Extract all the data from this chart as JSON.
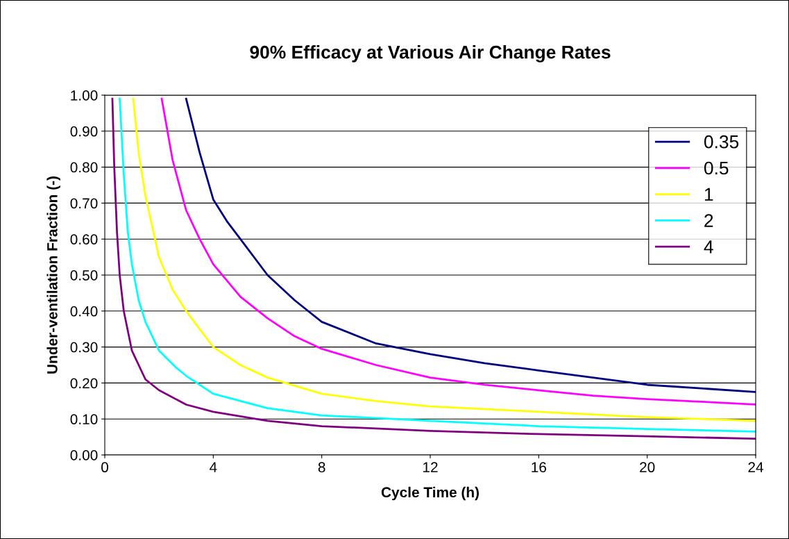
{
  "chart_data": {
    "type": "line",
    "title": "90% Efficacy at Various Air Change Rates",
    "xlabel": "Cycle Time (h)",
    "ylabel": "Under-ventilation Fraction (-)",
    "xlim": [
      0,
      24
    ],
    "xticks": [
      0,
      4,
      8,
      12,
      16,
      20,
      24
    ],
    "ylim": [
      0,
      1
    ],
    "yticks": [
      {
        "value": 0,
        "label": "0.00"
      },
      {
        "value": 0.1,
        "label": "0.10"
      },
      {
        "value": 0.2,
        "label": "0.20"
      },
      {
        "value": 0.3,
        "label": "0.30"
      },
      {
        "value": 0.4,
        "label": "0.40"
      },
      {
        "value": 0.5,
        "label": "0.50"
      },
      {
        "value": 0.6,
        "label": "0.60"
      },
      {
        "value": 0.7,
        "label": "0.70"
      },
      {
        "value": 0.8,
        "label": "0.80"
      },
      {
        "value": 0.9,
        "label": "0.90"
      },
      {
        "value": 1,
        "label": "1.00"
      }
    ],
    "grid": "y",
    "legend": "right",
    "marker": "none",
    "line_style": "solid",
    "series": [
      {
        "name": "0.35",
        "color": "#000080",
        "x": [
          3.0,
          3.5,
          4,
          4.5,
          5,
          6,
          7,
          8,
          10,
          12,
          14,
          16,
          18,
          20,
          22,
          24
        ],
        "values": [
          0.99,
          0.84,
          0.71,
          0.65,
          0.6,
          0.5,
          0.43,
          0.37,
          0.31,
          0.28,
          0.255,
          0.235,
          0.215,
          0.195,
          0.185,
          0.175
        ]
      },
      {
        "name": "0.5",
        "color": "#ff00ff",
        "x": [
          2.1,
          2.5,
          3,
          3.5,
          4,
          5,
          6,
          7,
          8,
          10,
          12,
          14,
          16,
          18,
          20,
          22,
          24
        ],
        "values": [
          0.99,
          0.82,
          0.68,
          0.6,
          0.53,
          0.44,
          0.38,
          0.33,
          0.295,
          0.25,
          0.215,
          0.195,
          0.18,
          0.165,
          0.155,
          0.148,
          0.14
        ]
      },
      {
        "name": "1",
        "color": "#ffff00",
        "x": [
          1.05,
          1.25,
          1.5,
          2,
          2.5,
          3,
          4,
          5,
          6,
          8,
          10,
          12,
          16,
          20,
          24
        ],
        "values": [
          0.99,
          0.84,
          0.72,
          0.55,
          0.46,
          0.4,
          0.3,
          0.25,
          0.215,
          0.17,
          0.15,
          0.135,
          0.12,
          0.105,
          0.095
        ]
      },
      {
        "name": "2",
        "color": "#00ffff",
        "x": [
          0.55,
          0.7,
          0.85,
          1,
          1.25,
          1.5,
          2,
          2.6,
          3,
          4,
          6,
          8,
          12,
          16,
          20,
          24
        ],
        "values": [
          0.99,
          0.78,
          0.62,
          0.53,
          0.43,
          0.37,
          0.29,
          0.245,
          0.22,
          0.17,
          0.13,
          0.11,
          0.095,
          0.08,
          0.072,
          0.065
        ]
      },
      {
        "name": "4",
        "color": "#800080",
        "x": [
          0.28,
          0.35,
          0.45,
          0.55,
          0.7,
          1,
          1.5,
          2,
          3,
          4,
          6,
          8,
          12,
          16,
          20,
          24
        ],
        "values": [
          0.99,
          0.8,
          0.62,
          0.5,
          0.4,
          0.29,
          0.21,
          0.18,
          0.14,
          0.12,
          0.095,
          0.08,
          0.067,
          0.058,
          0.052,
          0.045
        ]
      }
    ]
  }
}
